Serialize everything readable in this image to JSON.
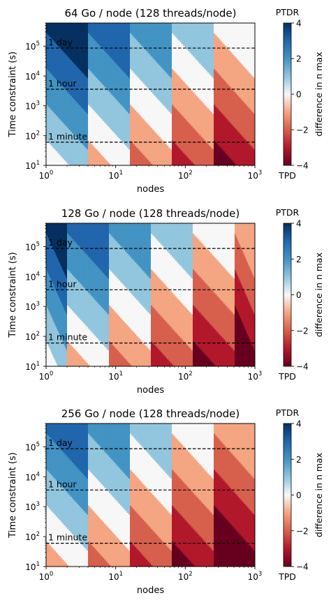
{
  "chart_data": [
    {
      "type": "heatmap",
      "title": "64 Go / node (128 threads/node)",
      "xlabel": "nodes",
      "ylabel": "Time constraint (s)",
      "x_scale": "log",
      "y_scale": "log",
      "xlim": [
        1,
        1000
      ],
      "ylim": [
        10,
        600000
      ],
      "x_ticks": [
        "10^0",
        "10^1",
        "10^2",
        "10^3"
      ],
      "y_ticks": [
        "10^1",
        "10^2",
        "10^3",
        "10^4",
        "10^5"
      ],
      "node_bands": [
        1,
        4,
        16,
        64,
        256,
        1000
      ],
      "band_top_values": [
        4,
        3,
        2,
        1,
        0
      ],
      "value_step_decades": 1.2,
      "time_lines": [
        {
          "label": "1 minute",
          "seconds": 60
        },
        {
          "label": "1 hour",
          "seconds": 3600
        },
        {
          "label": "1 day",
          "seconds": 86400
        }
      ],
      "colorbar": {
        "label": "difference in n max",
        "min": -4,
        "max": 4,
        "ticks": [
          -4,
          -2,
          0,
          2,
          4
        ],
        "top_label": "PTDR",
        "bottom_label": "TPD"
      }
    },
    {
      "type": "heatmap",
      "title": "128 Go / node (128 threads/node)",
      "xlabel": "nodes",
      "ylabel": "Time constraint (s)",
      "x_scale": "log",
      "y_scale": "log",
      "xlim": [
        1,
        1000
      ],
      "ylim": [
        10,
        600000
      ],
      "x_ticks": [
        "10^0",
        "10^1",
        "10^2",
        "10^3"
      ],
      "y_ticks": [
        "10^1",
        "10^2",
        "10^3",
        "10^4",
        "10^5"
      ],
      "node_bands": [
        1,
        2,
        8,
        32,
        128,
        512,
        1000
      ],
      "band_top_values": [
        4,
        3,
        2,
        1,
        0,
        -1
      ],
      "value_step_decades": 1.2,
      "time_lines": [
        {
          "label": "1 minute",
          "seconds": 60
        },
        {
          "label": "1 hour",
          "seconds": 3600
        },
        {
          "label": "1 day",
          "seconds": 86400
        }
      ],
      "colorbar": {
        "label": "difference in n max",
        "min": -4,
        "max": 4,
        "ticks": [
          -4,
          -2,
          0,
          2,
          4
        ],
        "top_label": "PTDR",
        "bottom_label": "TPD"
      }
    },
    {
      "type": "heatmap",
      "title": "256 Go / node (128 threads/node)",
      "xlabel": "nodes",
      "ylabel": "Time constraint (s)",
      "x_scale": "log",
      "y_scale": "log",
      "xlim": [
        1,
        1000
      ],
      "ylim": [
        10,
        600000
      ],
      "x_ticks": [
        "10^0",
        "10^1",
        "10^2",
        "10^3"
      ],
      "y_ticks": [
        "10^1",
        "10^2",
        "10^3",
        "10^4",
        "10^5"
      ],
      "node_bands": [
        1,
        4,
        16,
        64,
        256,
        1000
      ],
      "band_top_values": [
        3,
        2,
        1,
        0,
        -1
      ],
      "value_step_decades": 1.2,
      "time_lines": [
        {
          "label": "1 minute",
          "seconds": 60
        },
        {
          "label": "1 hour",
          "seconds": 3600
        },
        {
          "label": "1 day",
          "seconds": 86400
        }
      ],
      "colorbar": {
        "label": "difference in n max",
        "min": -4,
        "max": 4,
        "ticks": [
          -4,
          -2,
          0,
          2,
          4
        ],
        "top_label": "PTDR",
        "bottom_label": "TPD"
      }
    }
  ],
  "colormap": {
    "name": "RdBu",
    "stops": [
      {
        "value": -4,
        "color": "#67001f"
      },
      {
        "value": -3,
        "color": "#b2182b"
      },
      {
        "value": -2,
        "color": "#d6604d"
      },
      {
        "value": -1,
        "color": "#f4a582"
      },
      {
        "value": 0,
        "color": "#f7f7f7"
      },
      {
        "value": 1,
        "color": "#92c5de"
      },
      {
        "value": 2,
        "color": "#4393c3"
      },
      {
        "value": 3,
        "color": "#2166ac"
      },
      {
        "value": 4,
        "color": "#053061"
      }
    ]
  }
}
